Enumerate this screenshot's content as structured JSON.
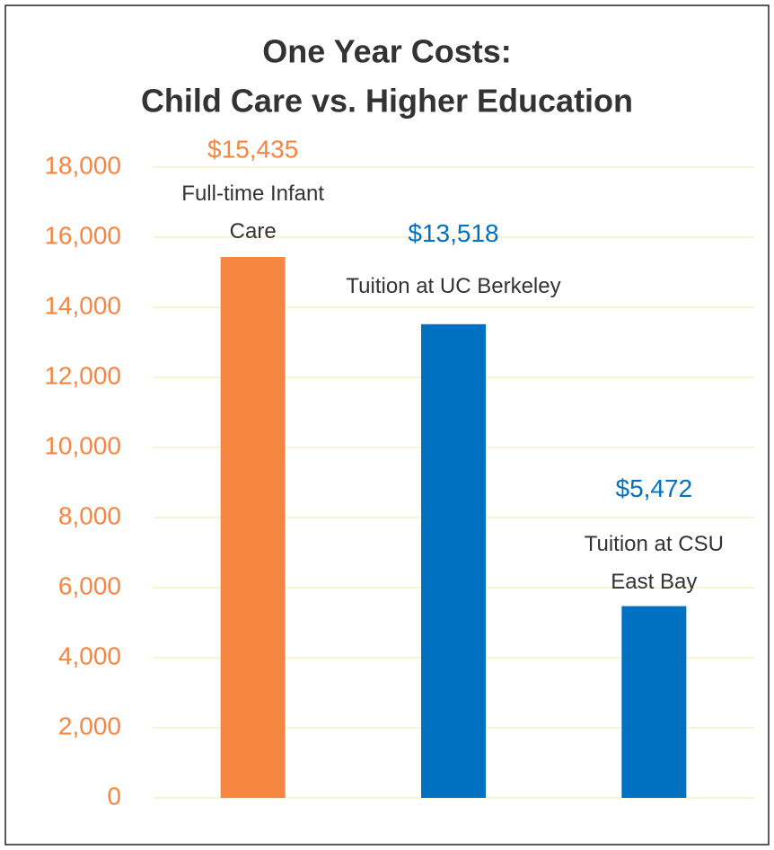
{
  "chart_data": {
    "type": "bar",
    "title": [
      "One Year Costs:",
      "Child Care vs. Higher Education"
    ],
    "categories": [
      "Full-time Infant Care",
      "Tuition at UC Berkeley",
      "Tuition at CSU East Bay"
    ],
    "values": [
      15435,
      13518,
      5472
    ],
    "value_labels": [
      "$15,435",
      "$13,518",
      "$5,472"
    ],
    "colors": [
      "#f58642",
      "#0070c0",
      "#0070c0"
    ],
    "ylim": [
      0,
      18000
    ],
    "yticks": [
      0,
      {
        "value": 2000,
        "label": "2,000"
      },
      {
        "value": 4000,
        "label": "4,000"
      },
      {
        "value": 6000,
        "label": "6,000"
      },
      {
        "value": 8000,
        "label": "8,000"
      },
      {
        "value": 10000,
        "label": "10,000"
      },
      {
        "value": 12000,
        "label": "12,000"
      },
      {
        "value": 14000,
        "label": "14,000"
      },
      {
        "value": 16000,
        "label": "16,000"
      },
      {
        "value": 18000,
        "label": "18,000"
      }
    ],
    "grid": true
  }
}
